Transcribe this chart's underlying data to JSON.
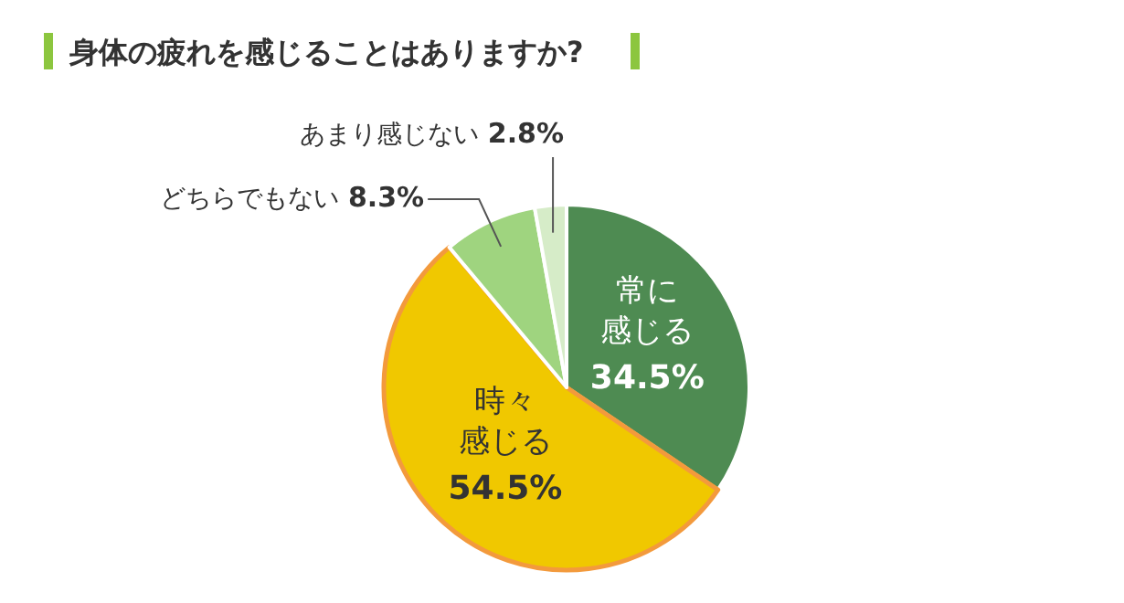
{
  "chart_data": {
    "type": "pie",
    "title": "身体の疲れを感じることはありますか?",
    "categories": [
      "常に感じる",
      "時々感じる",
      "どちらでもない",
      "あまり感じない"
    ],
    "values": [
      34.5,
      54.5,
      8.3,
      2.8
    ],
    "colors": [
      "#4e8b52",
      "#f0c800",
      "#9fd47f",
      "#d6ecc8"
    ],
    "value_labels": [
      "34.5%",
      "54.5%",
      "8.3%",
      "2.8%"
    ]
  }
}
